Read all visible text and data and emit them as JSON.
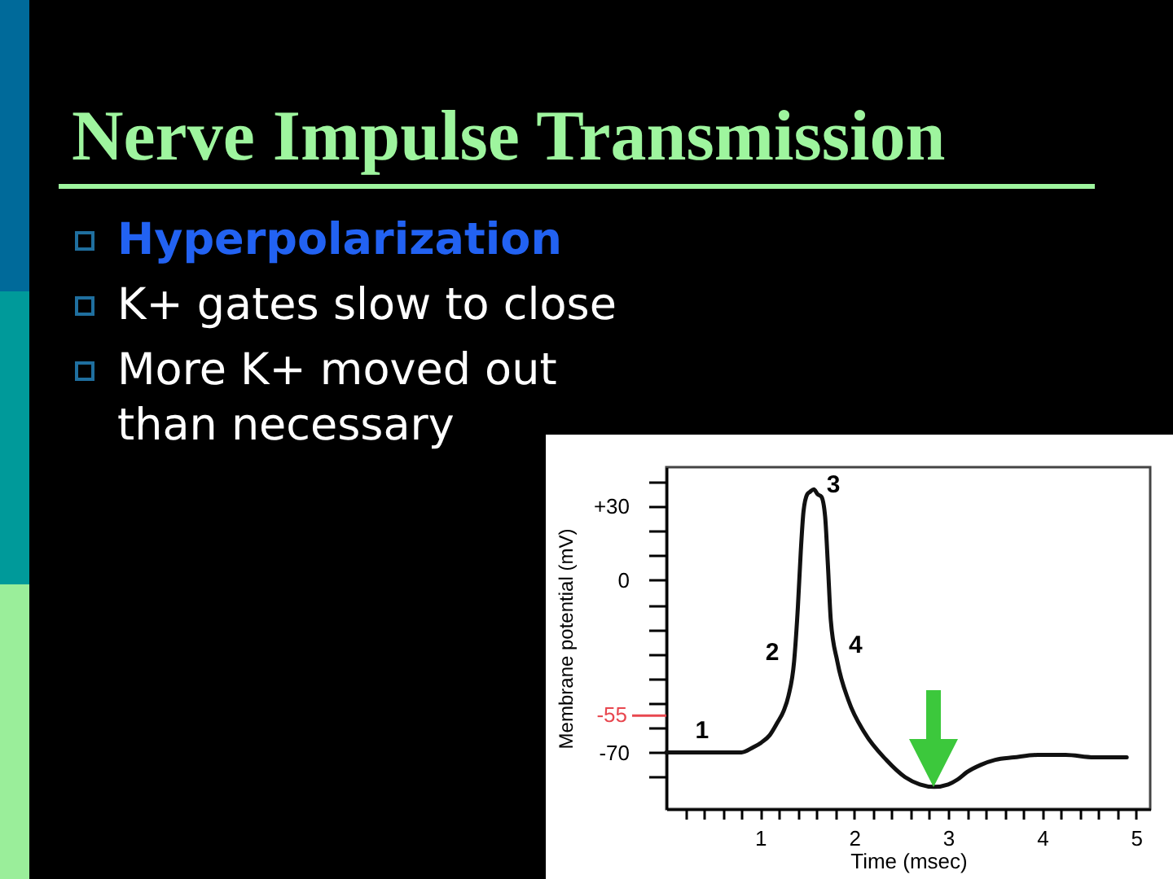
{
  "chart_data": {
    "type": "line",
    "title": "Nerve Impulse Transmission",
    "xlabel": "Time (msec)",
    "ylabel": "Membrane potential (mV)",
    "x": [
      0,
      0.5,
      0.8,
      0.92,
      1.01,
      1.1,
      1.18,
      1.25,
      1.3,
      1.36,
      1.4,
      1.43,
      1.46,
      1.5,
      1.53,
      1.57,
      1.61,
      1.65,
      1.69,
      1.72,
      1.75,
      1.82,
      1.94,
      2.11,
      2.34,
      2.54,
      2.7,
      2.85,
      3,
      3.1,
      3.2,
      3.35,
      3.5,
      3.7,
      3.95,
      4.25,
      4.55,
      4.9
    ],
    "series": [
      {
        "color": "#111111",
        "values": [
          -70,
          -70,
          -70,
          -68,
          -66,
          -63,
          -58,
          -53,
          -47,
          -33,
          -11,
          11,
          28,
          35,
          36,
          37,
          35,
          34,
          26,
          6,
          -16,
          -33,
          -49,
          -62,
          -73,
          -80,
          -83,
          -84,
          -83,
          -81,
          -78,
          -75,
          -73,
          -72,
          -71,
          -71,
          -72,
          -72
        ]
      }
    ],
    "xlim": [
      0,
      5.15
    ],
    "ylim": [
      -93,
      46
    ],
    "xticks": [
      {
        "value": 0.2,
        "label": null
      },
      {
        "value": 0.4,
        "label": null
      },
      {
        "value": 0.6,
        "label": null
      },
      {
        "value": 0.8,
        "label": null
      },
      1,
      {
        "value": 1.2,
        "label": null
      },
      {
        "value": 1.4,
        "label": null
      },
      {
        "value": 1.6,
        "label": null
      },
      {
        "value": 1.8,
        "label": null
      },
      2,
      {
        "value": 2.2,
        "label": null
      },
      {
        "value": 2.4,
        "label": null
      },
      {
        "value": 2.6,
        "label": null
      },
      {
        "value": 2.8,
        "label": null
      },
      3,
      {
        "value": 3.2,
        "label": null
      },
      {
        "value": 3.4,
        "label": null
      },
      {
        "value": 3.6,
        "label": null
      },
      {
        "value": 3.8,
        "label": null
      },
      4,
      {
        "value": 4.2,
        "label": null
      },
      {
        "value": 4.4,
        "label": null
      },
      {
        "value": 4.6,
        "label": null
      },
      {
        "value": 4.8,
        "label": null
      },
      5
    ],
    "yticks": [
      {
        "value": 40,
        "label": null
      },
      {
        "value": 30,
        "label": "+30"
      },
      {
        "value": 20,
        "label": null
      },
      {
        "value": 10,
        "label": null
      },
      0,
      {
        "value": -10,
        "label": null
      },
      {
        "value": -20,
        "label": null
      },
      {
        "value": -30,
        "label": null
      },
      {
        "value": -40,
        "label": null
      },
      {
        "value": -50,
        "label": null
      },
      {
        "value": -60,
        "label": null
      },
      -70,
      {
        "value": -80,
        "label": null
      }
    ],
    "ref_lines": [
      {
        "axis": "y",
        "value": -55,
        "label": "-55",
        "color": "#e8474f"
      }
    ],
    "annotations": [
      "Hyperpolarization",
      "K+ gates slow to close",
      "More K+ moved out than necessary",
      {
        "text": "1",
        "x": 0.38,
        "y": -70
      },
      {
        "text": "2",
        "x": 1.37,
        "y": -29
      },
      {
        "text": "3",
        "x": 1.57,
        "y": 37
      },
      {
        "text": "4",
        "x": 1.79,
        "y": -26
      }
    ]
  }
}
